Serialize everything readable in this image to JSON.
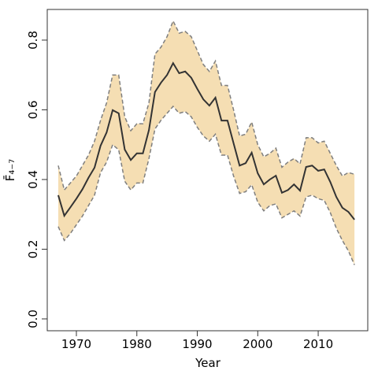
{
  "chart_data": {
    "type": "line",
    "xlabel": "Year",
    "ylabel": "F̄₄₋₇",
    "x": [
      1967,
      1968,
      1969,
      1970,
      1971,
      1972,
      1973,
      1974,
      1975,
      1976,
      1977,
      1978,
      1979,
      1980,
      1981,
      1982,
      1983,
      1984,
      1985,
      1986,
      1987,
      1988,
      1989,
      1990,
      1991,
      1992,
      1993,
      1994,
      1995,
      1996,
      1997,
      1998,
      1999,
      2000,
      2001,
      2002,
      2003,
      2004,
      2005,
      2006,
      2007,
      2008,
      2009,
      2010,
      2011,
      2012,
      2013,
      2014,
      2015,
      2016
    ],
    "values": [
      0.355,
      0.296,
      0.32,
      0.345,
      0.372,
      0.405,
      0.434,
      0.497,
      0.535,
      0.599,
      0.59,
      0.486,
      0.456,
      0.475,
      0.475,
      0.542,
      0.651,
      0.678,
      0.7,
      0.734,
      0.705,
      0.71,
      0.692,
      0.66,
      0.63,
      0.612,
      0.635,
      0.569,
      0.569,
      0.504,
      0.44,
      0.447,
      0.477,
      0.418,
      0.386,
      0.4,
      0.411,
      0.362,
      0.37,
      0.386,
      0.368,
      0.436,
      0.44,
      0.425,
      0.429,
      0.393,
      0.35,
      0.319,
      0.307,
      0.285
    ],
    "upper": [
      0.44,
      0.37,
      0.39,
      0.41,
      0.44,
      0.47,
      0.51,
      0.57,
      0.62,
      0.7,
      0.7,
      0.58,
      0.54,
      0.56,
      0.56,
      0.62,
      0.76,
      0.78,
      0.81,
      0.855,
      0.82,
      0.825,
      0.81,
      0.77,
      0.73,
      0.71,
      0.74,
      0.67,
      0.67,
      0.6,
      0.525,
      0.53,
      0.565,
      0.5,
      0.465,
      0.475,
      0.49,
      0.435,
      0.45,
      0.46,
      0.445,
      0.52,
      0.52,
      0.505,
      0.51,
      0.475,
      0.44,
      0.41,
      0.42,
      0.415
    ],
    "lower": [
      0.265,
      0.225,
      0.245,
      0.27,
      0.295,
      0.325,
      0.355,
      0.42,
      0.45,
      0.5,
      0.485,
      0.395,
      0.37,
      0.39,
      0.39,
      0.46,
      0.545,
      0.57,
      0.59,
      0.61,
      0.59,
      0.595,
      0.58,
      0.55,
      0.525,
      0.51,
      0.53,
      0.47,
      0.47,
      0.41,
      0.36,
      0.365,
      0.385,
      0.335,
      0.31,
      0.325,
      0.33,
      0.29,
      0.3,
      0.31,
      0.295,
      0.35,
      0.355,
      0.345,
      0.34,
      0.305,
      0.26,
      0.225,
      0.195,
      0.155
    ],
    "line_color": "#333333",
    "band_color": "#f5deb3",
    "band_edge_color": "#7f7f7f",
    "xlim": [
      1965.18,
      2018.2
    ],
    "ylim": [
      -0.034,
      0.888
    ],
    "xticks": [
      1970,
      1980,
      1990,
      2000,
      2010
    ],
    "yticks": [
      {
        "value": 0,
        "label": "0.0"
      },
      0.2,
      0.4,
      0.6,
      0.8
    ]
  }
}
